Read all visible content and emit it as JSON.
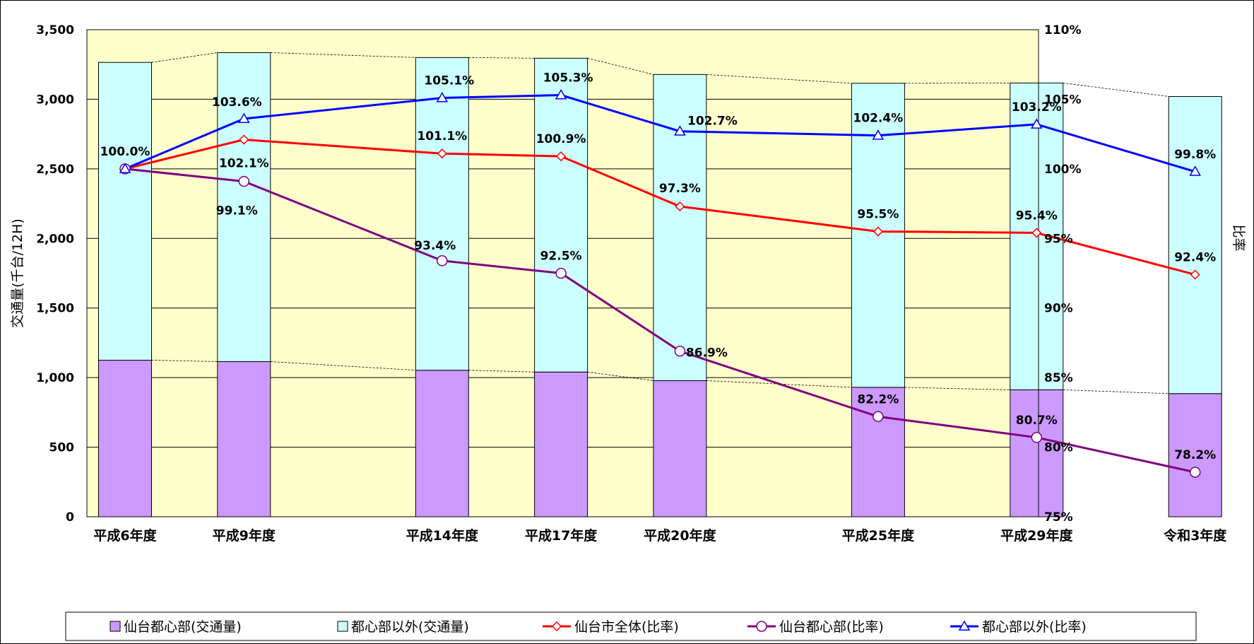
{
  "chart_data": {
    "type": "bar",
    "categories": [
      "平成6年度",
      "平成9年度",
      "平成14年度",
      "平成17年度",
      "平成20年度",
      "平成25年度",
      "平成29年度",
      "令和3年度"
    ],
    "category_years": [
      1994,
      1997,
      2002,
      2005,
      2008,
      2013,
      2017,
      2021
    ],
    "ylabel": "交通量(千台/12H)",
    "y2label": "比率",
    "ylim": [
      0,
      3500
    ],
    "y2lim": [
      75,
      110
    ],
    "yticks": [
      "0",
      "500",
      "1,000",
      "1,500",
      "2,000",
      "2,500",
      "3,000",
      "3,500"
    ],
    "y2ticks": [
      "75%",
      "80%",
      "85%",
      "90%",
      "95%",
      "100%",
      "105%",
      "110%"
    ],
    "grid": true,
    "legend_position": "bottom",
    "stacked_series": [
      {
        "name": "仙台都心部(交通量)",
        "color": "#cc99ff",
        "values": [
          1125,
          1115,
          1053,
          1040,
          978,
          930,
          912,
          885
        ]
      },
      {
        "name": "都心部以外(交通量)",
        "color": "#ccffff",
        "values": [
          2140,
          2220,
          2247,
          2255,
          2200,
          2185,
          2205,
          2135
        ]
      }
    ],
    "ratio_series": [
      {
        "name": "仙台市全体(比率)",
        "color": "#ff0000",
        "marker": "diamond",
        "values": [
          100.0,
          102.1,
          101.1,
          100.9,
          97.3,
          95.5,
          95.4,
          92.4
        ],
        "labels": [
          "",
          "102.1%",
          "101.1%",
          "100.9%",
          "97.3%",
          "95.5%",
          "95.4%",
          "92.4%"
        ]
      },
      {
        "name": "仙台都心部(比率)",
        "color": "#800080",
        "marker": "circle",
        "values": [
          100.0,
          99.1,
          93.4,
          92.5,
          86.9,
          82.2,
          80.7,
          78.2
        ],
        "labels": [
          "100.0%",
          "99.1%",
          "93.4%",
          "92.5%",
          "86.9%",
          "82.2%",
          "80.7%",
          "78.2%"
        ]
      },
      {
        "name": "都心部以外(比率)",
        "color": "#0000ff",
        "marker": "triangle",
        "values": [
          100.0,
          103.6,
          105.1,
          105.3,
          102.7,
          102.4,
          103.2,
          99.8
        ],
        "labels": [
          "",
          "103.6%",
          "105.1%",
          "105.3%",
          "102.7%",
          "102.4%",
          "103.2%",
          "99.8%"
        ]
      }
    ]
  },
  "colors": {
    "plot_background": "#ffffcc",
    "gridline": "#000000",
    "border": "#000000"
  }
}
